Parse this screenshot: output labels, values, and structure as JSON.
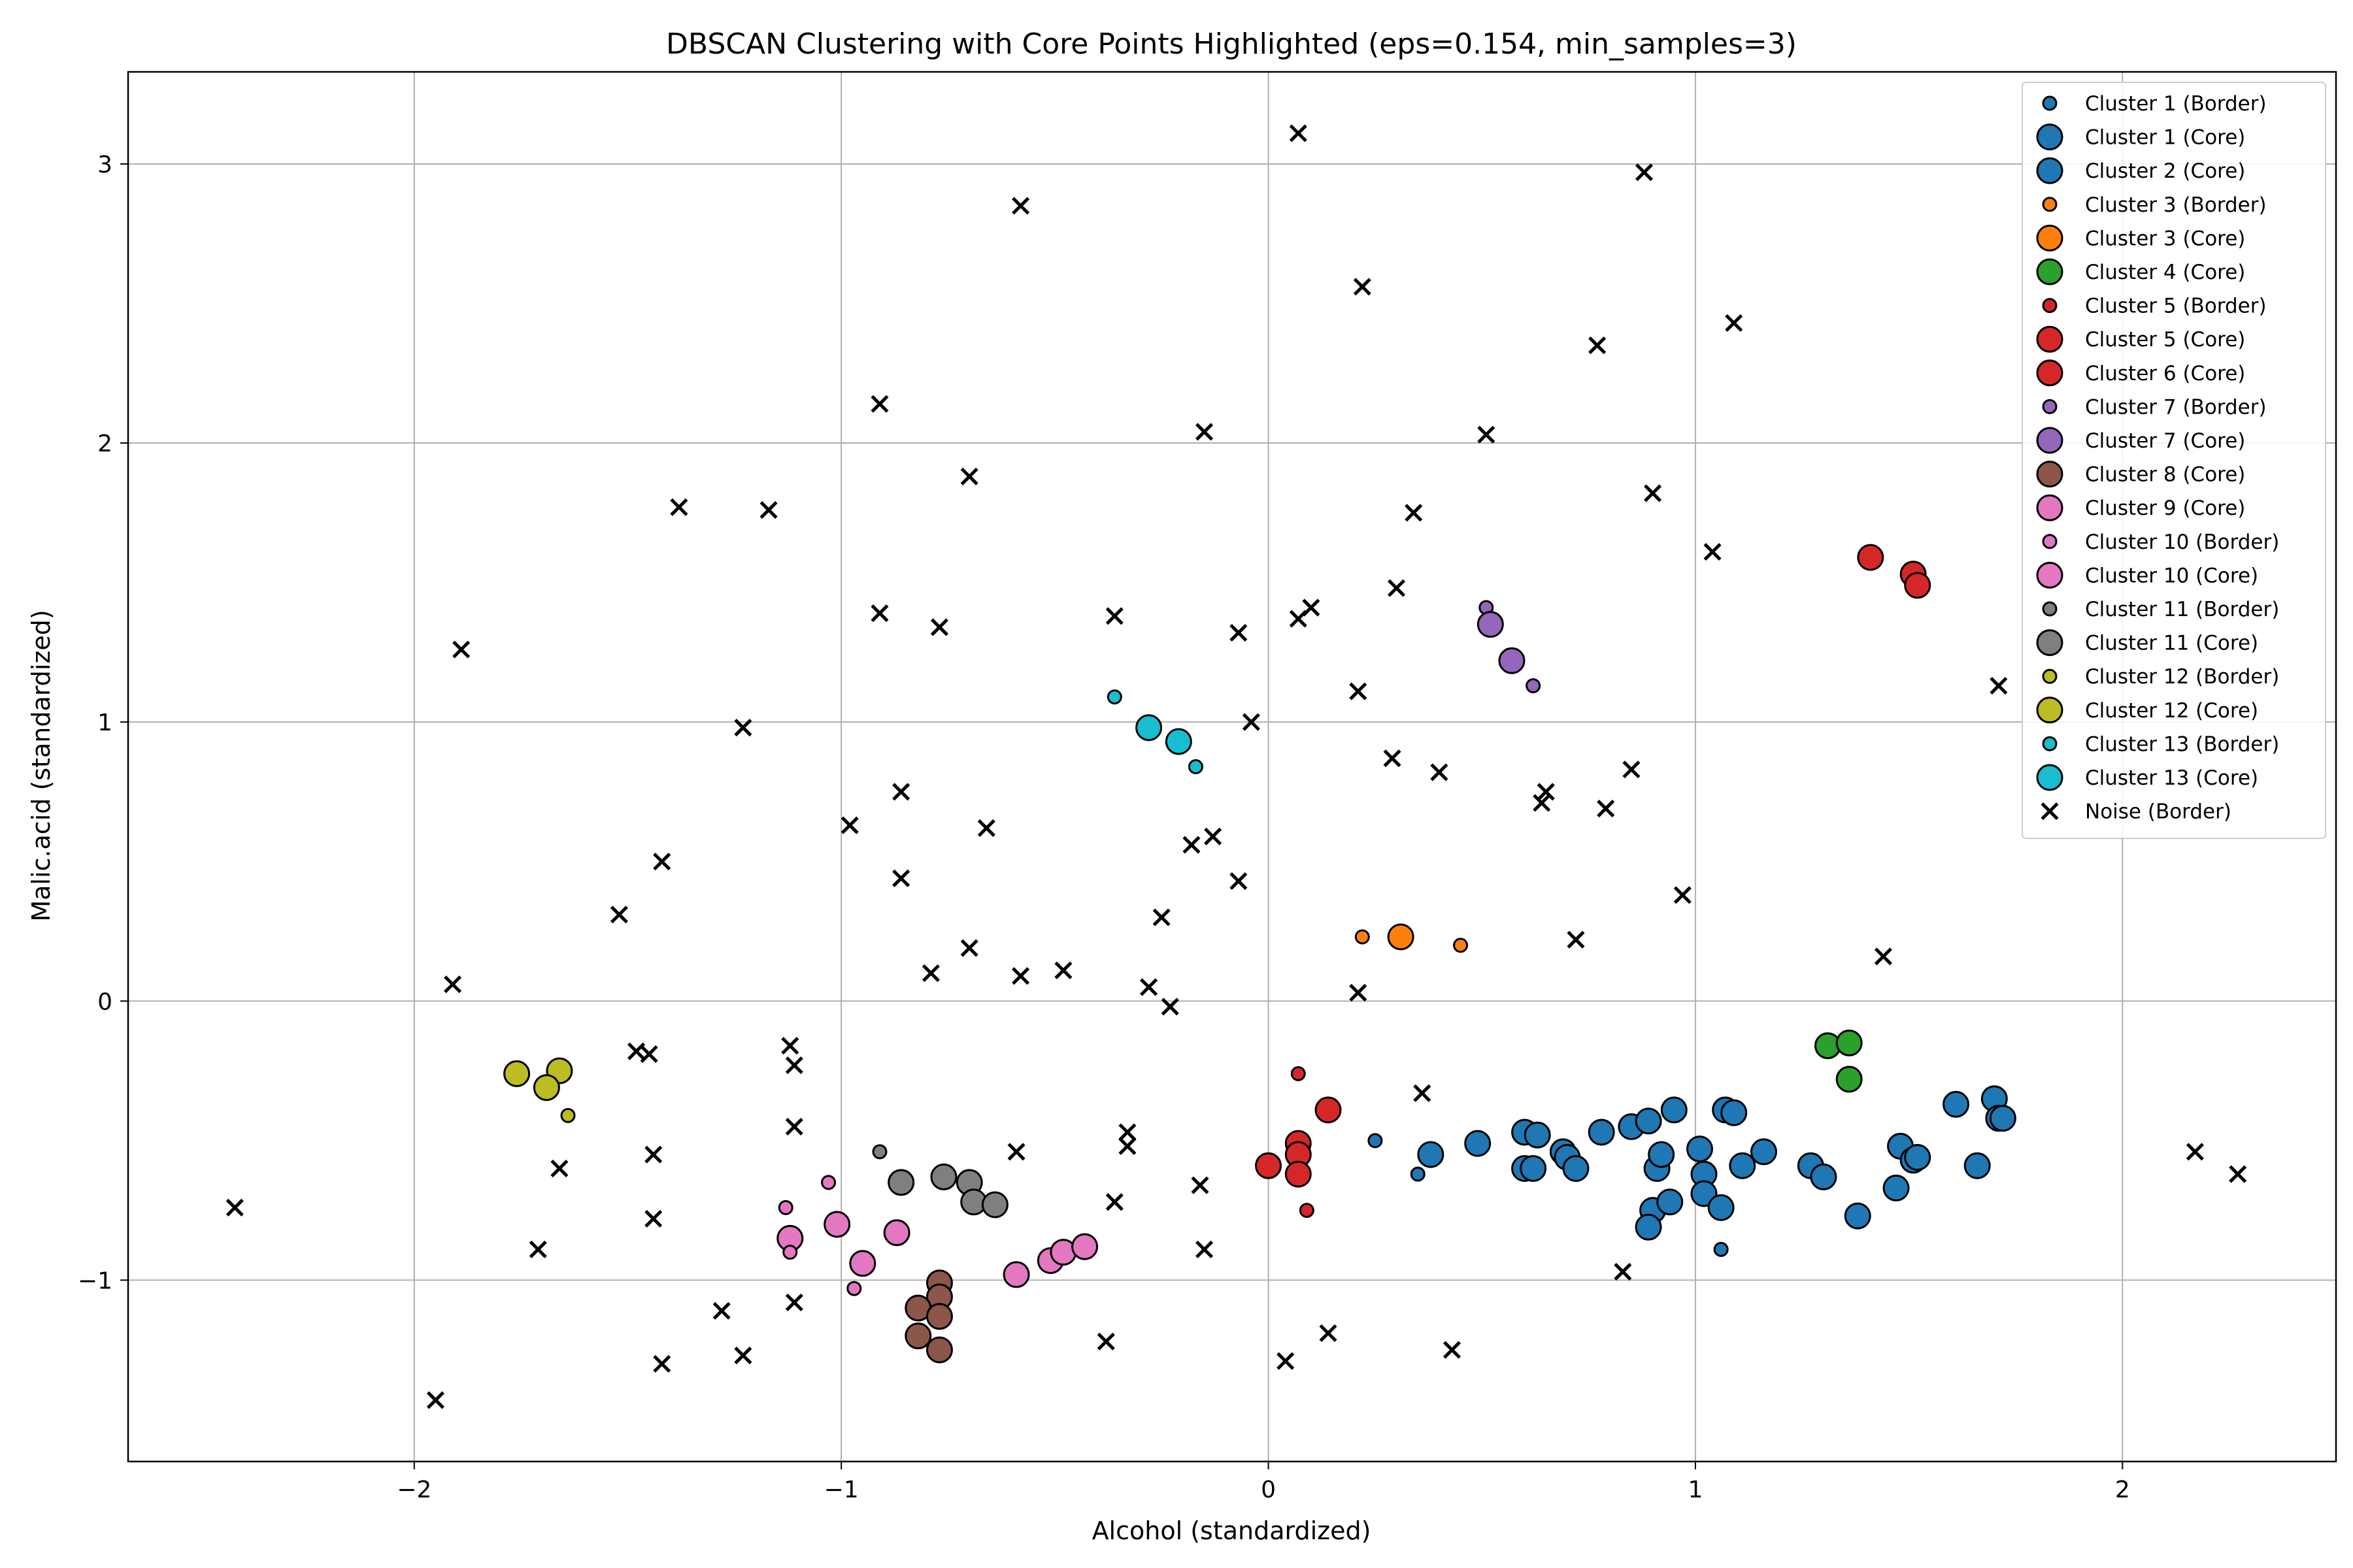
{
  "chart_data": {
    "type": "scatter",
    "title": "DBSCAN Clustering with Core Points Highlighted (eps=0.154, min_samples=3)",
    "xlabel": "Alcohol (standardized)",
    "ylabel": "Malic.acid (standardized)",
    "xlim": [
      -2.67,
      2.5
    ],
    "ylim": [
      -1.65,
      3.33
    ],
    "xticks": [
      -2,
      -1,
      0,
      1,
      2
    ],
    "yticks": [
      -1,
      0,
      1,
      2,
      3
    ],
    "xtick_labels": [
      "−2",
      "−1",
      "0",
      "1",
      "2"
    ],
    "ytick_labels": [
      "−1",
      "0",
      "1",
      "2",
      "3"
    ],
    "grid": true,
    "legend_position": "top-right",
    "series": [
      {
        "name": "Cluster 1 (Border)",
        "color": "#1f77b4",
        "marker": "small-circle",
        "points": [
          [
            0.25,
            -0.5
          ],
          [
            0.35,
            -0.62
          ],
          [
            1.06,
            -0.89
          ]
        ]
      },
      {
        "name": "Cluster 1 (Core)",
        "color": "#1f77b4",
        "marker": "large-circle",
        "points": [
          [
            0.38,
            -0.55
          ],
          [
            0.49,
            -0.51
          ],
          [
            0.6,
            -0.47
          ],
          [
            0.63,
            -0.48
          ],
          [
            0.6,
            -0.6
          ],
          [
            0.62,
            -0.6
          ],
          [
            0.69,
            -0.54
          ],
          [
            0.7,
            -0.56
          ],
          [
            0.72,
            -0.6
          ],
          [
            0.78,
            -0.47
          ],
          [
            0.85,
            -0.45
          ],
          [
            0.89,
            -0.43
          ],
          [
            0.95,
            -0.39
          ],
          [
            0.9,
            -0.75
          ],
          [
            0.89,
            -0.81
          ],
          [
            0.91,
            -0.6
          ],
          [
            0.92,
            -0.55
          ],
          [
            0.94,
            -0.72
          ],
          [
            1.01,
            -0.53
          ],
          [
            1.02,
            -0.62
          ],
          [
            1.02,
            -0.69
          ],
          [
            1.06,
            -0.74
          ],
          [
            1.07,
            -0.39
          ],
          [
            1.09,
            -0.4
          ],
          [
            1.11,
            -0.59
          ],
          [
            1.16,
            -0.54
          ],
          [
            1.27,
            -0.59
          ],
          [
            1.3,
            -0.63
          ],
          [
            1.38,
            -0.77
          ],
          [
            1.48,
            -0.52
          ],
          [
            1.51,
            -0.57
          ],
          [
            1.52,
            -0.56
          ],
          [
            1.47,
            -0.67
          ],
          [
            1.61,
            -0.37
          ],
          [
            1.66,
            -0.59
          ],
          [
            1.7,
            -0.35
          ],
          [
            1.71,
            -0.42
          ],
          [
            1.72,
            -0.42
          ]
        ]
      },
      {
        "name": "Cluster 2 (Core)",
        "color": "#1f77b4",
        "marker": "large-circle",
        "points": []
      },
      {
        "name": "Cluster 3 (Border)",
        "color": "#ff7f0e",
        "marker": "small-circle",
        "points": [
          [
            0.22,
            0.23
          ],
          [
            0.45,
            0.2
          ]
        ]
      },
      {
        "name": "Cluster 3 (Core)",
        "color": "#ff7f0e",
        "marker": "large-circle",
        "points": [
          [
            0.31,
            0.23
          ]
        ]
      },
      {
        "name": "Cluster 4 (Core)",
        "color": "#2ca02c",
        "marker": "large-circle",
        "points": [
          [
            1.31,
            -0.16
          ],
          [
            1.36,
            -0.15
          ],
          [
            1.36,
            -0.28
          ]
        ]
      },
      {
        "name": "Cluster 5 (Border)",
        "color": "#d62728",
        "marker": "small-circle",
        "points": [
          [
            0.07,
            -0.26
          ],
          [
            0.09,
            -0.75
          ]
        ]
      },
      {
        "name": "Cluster 5 (Core)",
        "color": "#d62728",
        "marker": "large-circle",
        "points": [
          [
            0.14,
            -0.39
          ],
          [
            0.07,
            -0.51
          ],
          [
            0.07,
            -0.55
          ],
          [
            0.07,
            -0.62
          ],
          [
            0.0,
            -0.59
          ]
        ]
      },
      {
        "name": "Cluster 6 (Core)",
        "color": "#d62728",
        "marker": "large-circle",
        "points": [
          [
            1.41,
            1.59
          ],
          [
            1.51,
            1.53
          ],
          [
            1.52,
            1.49
          ]
        ]
      },
      {
        "name": "Cluster 7 (Border)",
        "color": "#9467bd",
        "marker": "small-circle",
        "points": [
          [
            0.51,
            1.41
          ],
          [
            0.62,
            1.13
          ]
        ]
      },
      {
        "name": "Cluster 7 (Core)",
        "color": "#9467bd",
        "marker": "large-circle",
        "points": [
          [
            0.52,
            1.35
          ],
          [
            0.57,
            1.22
          ]
        ]
      },
      {
        "name": "Cluster 8 (Core)",
        "color": "#8c564b",
        "marker": "large-circle",
        "points": [
          [
            -0.77,
            -1.01
          ],
          [
            -0.77,
            -1.06
          ],
          [
            -0.82,
            -1.1
          ],
          [
            -0.77,
            -1.13
          ],
          [
            -0.82,
            -1.2
          ],
          [
            -0.77,
            -1.25
          ]
        ]
      },
      {
        "name": "Cluster 9 (Core)",
        "color": "#e377c2",
        "marker": "large-circle",
        "points": [
          [
            -1.12,
            -0.85
          ],
          [
            -1.01,
            -0.8
          ],
          [
            -0.95,
            -0.94
          ],
          [
            -0.87,
            -0.83
          ]
        ]
      },
      {
        "name": "Cluster 10 (Border)",
        "color": "#e377c2",
        "marker": "small-circle",
        "points": [
          [
            -1.13,
            -0.74
          ],
          [
            -1.12,
            -0.9
          ],
          [
            -0.97,
            -1.03
          ],
          [
            -1.03,
            -0.65
          ]
        ]
      },
      {
        "name": "Cluster 10 (Core)",
        "color": "#e377c2",
        "marker": "large-circle",
        "points": [
          [
            -0.59,
            -0.98
          ],
          [
            -0.51,
            -0.93
          ],
          [
            -0.48,
            -0.9
          ],
          [
            -0.43,
            -0.88
          ]
        ]
      },
      {
        "name": "Cluster 11 (Border)",
        "color": "#7f7f7f",
        "marker": "small-circle",
        "points": [
          [
            -0.91,
            -0.54
          ]
        ]
      },
      {
        "name": "Cluster 11 (Core)",
        "color": "#7f7f7f",
        "marker": "large-circle",
        "points": [
          [
            -0.86,
            -0.65
          ],
          [
            -0.76,
            -0.63
          ],
          [
            -0.7,
            -0.65
          ],
          [
            -0.69,
            -0.72
          ],
          [
            -0.64,
            -0.73
          ]
        ]
      },
      {
        "name": "Cluster 12 (Border)",
        "color": "#bcbd22",
        "marker": "small-circle",
        "points": [
          [
            -1.64,
            -0.41
          ]
        ]
      },
      {
        "name": "Cluster 12 (Core)",
        "color": "#bcbd22",
        "marker": "large-circle",
        "points": [
          [
            -1.76,
            -0.26
          ],
          [
            -1.66,
            -0.25
          ],
          [
            -1.69,
            -0.31
          ]
        ]
      },
      {
        "name": "Cluster 13 (Border)",
        "color": "#17becf",
        "marker": "small-circle",
        "points": [
          [
            -0.36,
            1.09
          ],
          [
            -0.17,
            0.84
          ]
        ]
      },
      {
        "name": "Cluster 13 (Core)",
        "color": "#17becf",
        "marker": "large-circle",
        "points": [
          [
            -0.28,
            0.98
          ],
          [
            -0.21,
            0.93
          ]
        ]
      },
      {
        "name": "Noise (Border)",
        "color": "#000000",
        "marker": "x",
        "points": [
          [
            -2.42,
            -0.74
          ],
          [
            -1.95,
            -1.43
          ],
          [
            -1.89,
            1.26
          ],
          [
            -1.91,
            0.06
          ],
          [
            -1.71,
            -0.89
          ],
          [
            -1.66,
            -0.6
          ],
          [
            -1.52,
            0.31
          ],
          [
            -1.48,
            -0.18
          ],
          [
            -1.45,
            -0.19
          ],
          [
            -1.44,
            -0.55
          ],
          [
            -1.44,
            -0.78
          ],
          [
            -1.42,
            -1.3
          ],
          [
            -1.42,
            0.5
          ],
          [
            -1.38,
            1.77
          ],
          [
            -1.28,
            -1.11
          ],
          [
            -1.23,
            0.98
          ],
          [
            -1.23,
            -1.27
          ],
          [
            -1.17,
            1.76
          ],
          [
            -1.12,
            -0.16
          ],
          [
            -1.11,
            -0.23
          ],
          [
            -1.11,
            -0.45
          ],
          [
            -1.11,
            -1.08
          ],
          [
            -0.98,
            0.63
          ],
          [
            -0.91,
            2.14
          ],
          [
            -0.91,
            1.39
          ],
          [
            -0.86,
            0.75
          ],
          [
            -0.86,
            0.44
          ],
          [
            -0.79,
            0.1
          ],
          [
            -0.77,
            1.34
          ],
          [
            -0.7,
            1.88
          ],
          [
            -0.7,
            0.19
          ],
          [
            -0.66,
            0.62
          ],
          [
            -0.58,
            2.85
          ],
          [
            -0.58,
            0.09
          ],
          [
            -0.59,
            -0.54
          ],
          [
            -0.48,
            0.11
          ],
          [
            -0.38,
            -1.22
          ],
          [
            -0.36,
            1.38
          ],
          [
            -0.36,
            -0.72
          ],
          [
            -0.33,
            -0.47
          ],
          [
            -0.33,
            -0.52
          ],
          [
            -0.28,
            0.05
          ],
          [
            -0.25,
            0.3
          ],
          [
            -0.23,
            -0.02
          ],
          [
            -0.18,
            0.56
          ],
          [
            -0.16,
            -0.66
          ],
          [
            -0.15,
            -0.89
          ],
          [
            -0.15,
            2.04
          ],
          [
            -0.13,
            0.59
          ],
          [
            -0.07,
            1.32
          ],
          [
            -0.07,
            0.43
          ],
          [
            -0.04,
            1.0
          ],
          [
            0.04,
            -1.29
          ],
          [
            0.07,
            3.11
          ],
          [
            0.07,
            1.37
          ],
          [
            0.1,
            1.41
          ],
          [
            0.14,
            -1.19
          ],
          [
            0.21,
            1.11
          ],
          [
            0.21,
            0.03
          ],
          [
            0.22,
            2.56
          ],
          [
            0.29,
            0.87
          ],
          [
            0.3,
            1.48
          ],
          [
            0.34,
            1.75
          ],
          [
            0.36,
            -0.33
          ],
          [
            0.4,
            0.82
          ],
          [
            0.43,
            -1.25
          ],
          [
            0.51,
            2.03
          ],
          [
            0.64,
            0.71
          ],
          [
            0.65,
            0.75
          ],
          [
            0.72,
            0.22
          ],
          [
            0.77,
            2.35
          ],
          [
            0.79,
            0.69
          ],
          [
            0.83,
            -0.97
          ],
          [
            0.85,
            0.83
          ],
          [
            0.88,
            2.97
          ],
          [
            0.9,
            1.82
          ],
          [
            0.97,
            0.38
          ],
          [
            1.04,
            1.61
          ],
          [
            1.09,
            2.43
          ],
          [
            1.44,
            0.16
          ],
          [
            1.71,
            1.13
          ],
          [
            2.17,
            -0.54
          ],
          [
            2.27,
            -0.62
          ]
        ]
      }
    ]
  }
}
